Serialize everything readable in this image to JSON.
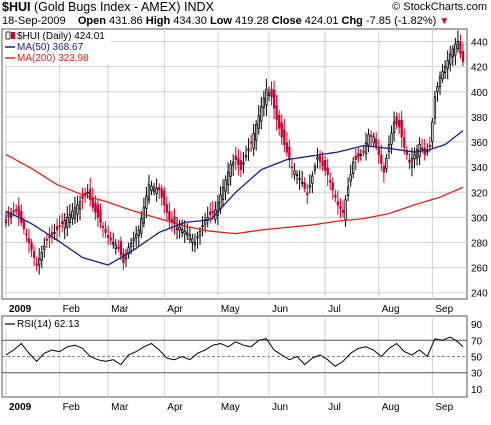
{
  "header": {
    "symbol": "$HUI",
    "name": "(Gold Bugs Index - AMEX)",
    "exchange": "INDX",
    "date": "18-Sep-2009",
    "open_label": "Open",
    "open": "431.86",
    "high_label": "High",
    "high": "434.30",
    "low_label": "Low",
    "low": "419.28",
    "close_label": "Close",
    "close": "424.01",
    "chg_label": "Chg",
    "chg": "-7.85 (-1.82%)",
    "chg_arrow": "▼",
    "watermark": "© StockCharts.com"
  },
  "colors": {
    "price_up": "#000000",
    "price_down": "#cc0033",
    "ma50": "#1a1a8c",
    "ma200": "#e0221b",
    "rsi": "#000000"
  },
  "chart_data": [
    {
      "type": "candlestick",
      "legend": [
        {
          "label": "$HUI (Daily) 424.01",
          "key": "price"
        },
        {
          "label": "MA(50) 368.67",
          "key": "ma50"
        },
        {
          "label": "MA(200) 323.98",
          "key": "ma200"
        }
      ],
      "ylim": [
        235,
        450
      ],
      "yticks": [
        "240",
        "260",
        "280",
        "300",
        "320",
        "340",
        "360",
        "380",
        "400",
        "420",
        "440"
      ],
      "xlim": [
        0,
        180
      ],
      "month_ticks": [
        {
          "pos": 0,
          "label": "2009"
        },
        {
          "pos": 21,
          "label": "Feb"
        },
        {
          "pos": 40,
          "label": "Mar"
        },
        {
          "pos": 62,
          "label": "Apr"
        },
        {
          "pos": 83,
          "label": "May"
        },
        {
          "pos": 103,
          "label": "Jun"
        },
        {
          "pos": 125,
          "label": "Jul"
        },
        {
          "pos": 146,
          "label": "Aug"
        },
        {
          "pos": 167,
          "label": "Sep"
        }
      ],
      "close_keys": [
        [
          0,
          298
        ],
        [
          4,
          306
        ],
        [
          8,
          286
        ],
        [
          12,
          262
        ],
        [
          16,
          282
        ],
        [
          20,
          290
        ],
        [
          24,
          300
        ],
        [
          28,
          310
        ],
        [
          32,
          320
        ],
        [
          34,
          308
        ],
        [
          36,
          300
        ],
        [
          40,
          284
        ],
        [
          44,
          276
        ],
        [
          46,
          264
        ],
        [
          48,
          276
        ],
        [
          52,
          290
        ],
        [
          56,
          326
        ],
        [
          60,
          322
        ],
        [
          64,
          298
        ],
        [
          68,
          292
        ],
        [
          72,
          286
        ],
        [
          74,
          280
        ],
        [
          78,
          298
        ],
        [
          82,
          306
        ],
        [
          84,
          318
        ],
        [
          88,
          342
        ],
        [
          90,
          346
        ],
        [
          92,
          338
        ],
        [
          96,
          360
        ],
        [
          100,
          388
        ],
        [
          102,
          402
        ],
        [
          104,
          396
        ],
        [
          106,
          378
        ],
        [
          108,
          364
        ],
        [
          112,
          340
        ],
        [
          116,
          328
        ],
        [
          118,
          318
        ],
        [
          122,
          348
        ],
        [
          126,
          334
        ],
        [
          130,
          310
        ],
        [
          132,
          304
        ],
        [
          136,
          344
        ],
        [
          140,
          352
        ],
        [
          142,
          366
        ],
        [
          144,
          364
        ],
        [
          146,
          350
        ],
        [
          148,
          336
        ],
        [
          150,
          358
        ],
        [
          152,
          376
        ],
        [
          154,
          372
        ],
        [
          156,
          356
        ],
        [
          158,
          344
        ],
        [
          160,
          350
        ],
        [
          162,
          358
        ],
        [
          164,
          350
        ],
        [
          166,
          356
        ],
        [
          168,
          396
        ],
        [
          170,
          412
        ],
        [
          172,
          420
        ],
        [
          174,
          430
        ],
        [
          176,
          438
        ],
        [
          177,
          440
        ],
        [
          178,
          430
        ],
        [
          179,
          424
        ]
      ],
      "ma50_keys": [
        [
          0,
          305
        ],
        [
          10,
          295
        ],
        [
          20,
          282
        ],
        [
          30,
          268
        ],
        [
          40,
          262
        ],
        [
          50,
          274
        ],
        [
          60,
          288
        ],
        [
          70,
          296
        ],
        [
          80,
          298
        ],
        [
          90,
          320
        ],
        [
          100,
          338
        ],
        [
          110,
          346
        ],
        [
          120,
          349
        ],
        [
          130,
          352
        ],
        [
          140,
          357
        ],
        [
          150,
          355
        ],
        [
          160,
          352
        ],
        [
          166,
          354
        ],
        [
          172,
          358
        ],
        [
          179,
          369
        ]
      ],
      "ma200_keys": [
        [
          0,
          350
        ],
        [
          10,
          339
        ],
        [
          20,
          326
        ],
        [
          30,
          318
        ],
        [
          40,
          312
        ],
        [
          50,
          305
        ],
        [
          60,
          299
        ],
        [
          70,
          293
        ],
        [
          80,
          289
        ],
        [
          90,
          287
        ],
        [
          100,
          290
        ],
        [
          110,
          292
        ],
        [
          120,
          294
        ],
        [
          130,
          297
        ],
        [
          140,
          299
        ],
        [
          150,
          303
        ],
        [
          160,
          310
        ],
        [
          170,
          316
        ],
        [
          179,
          324
        ]
      ]
    },
    {
      "type": "line",
      "legend": [
        {
          "label": "RSI(14) 62.13",
          "key": "rsi"
        }
      ],
      "ylim": [
        0,
        100
      ],
      "yticks": [
        "10",
        "30",
        "50",
        "70",
        "90"
      ],
      "refs": [
        30,
        50,
        70
      ],
      "rsi_keys": [
        [
          0,
          52
        ],
        [
          3,
          58
        ],
        [
          6,
          66
        ],
        [
          9,
          54
        ],
        [
          12,
          44
        ],
        [
          15,
          54
        ],
        [
          18,
          58
        ],
        [
          21,
          56
        ],
        [
          24,
          62
        ],
        [
          27,
          64
        ],
        [
          30,
          60
        ],
        [
          33,
          50
        ],
        [
          36,
          46
        ],
        [
          39,
          44
        ],
        [
          42,
          46
        ],
        [
          45,
          40
        ],
        [
          48,
          52
        ],
        [
          51,
          56
        ],
        [
          54,
          62
        ],
        [
          57,
          66
        ],
        [
          60,
          58
        ],
        [
          63,
          48
        ],
        [
          66,
          46
        ],
        [
          69,
          50
        ],
        [
          72,
          46
        ],
        [
          75,
          54
        ],
        [
          78,
          58
        ],
        [
          81,
          64
        ],
        [
          84,
          66
        ],
        [
          87,
          62
        ],
        [
          90,
          68
        ],
        [
          93,
          64
        ],
        [
          96,
          62
        ],
        [
          99,
          70
        ],
        [
          102,
          72
        ],
        [
          105,
          58
        ],
        [
          108,
          52
        ],
        [
          111,
          46
        ],
        [
          114,
          50
        ],
        [
          117,
          40
        ],
        [
          120,
          48
        ],
        [
          123,
          52
        ],
        [
          126,
          46
        ],
        [
          129,
          38
        ],
        [
          132,
          44
        ],
        [
          135,
          54
        ],
        [
          138,
          60
        ],
        [
          141,
          62
        ],
        [
          144,
          58
        ],
        [
          147,
          50
        ],
        [
          150,
          60
        ],
        [
          153,
          66
        ],
        [
          156,
          56
        ],
        [
          159,
          52
        ],
        [
          162,
          58
        ],
        [
          165,
          50
        ],
        [
          168,
          72
        ],
        [
          171,
          70
        ],
        [
          174,
          74
        ],
        [
          177,
          68
        ],
        [
          179,
          62
        ]
      ],
      "month_ticks": [
        {
          "pos": 0,
          "label": "2009"
        },
        {
          "pos": 21,
          "label": "Feb"
        },
        {
          "pos": 40,
          "label": "Mar"
        },
        {
          "pos": 62,
          "label": "Apr"
        },
        {
          "pos": 83,
          "label": "May"
        },
        {
          "pos": 103,
          "label": "Jun"
        },
        {
          "pos": 125,
          "label": "Jul"
        },
        {
          "pos": 146,
          "label": "Aug"
        },
        {
          "pos": 167,
          "label": "Sep"
        }
      ]
    }
  ]
}
